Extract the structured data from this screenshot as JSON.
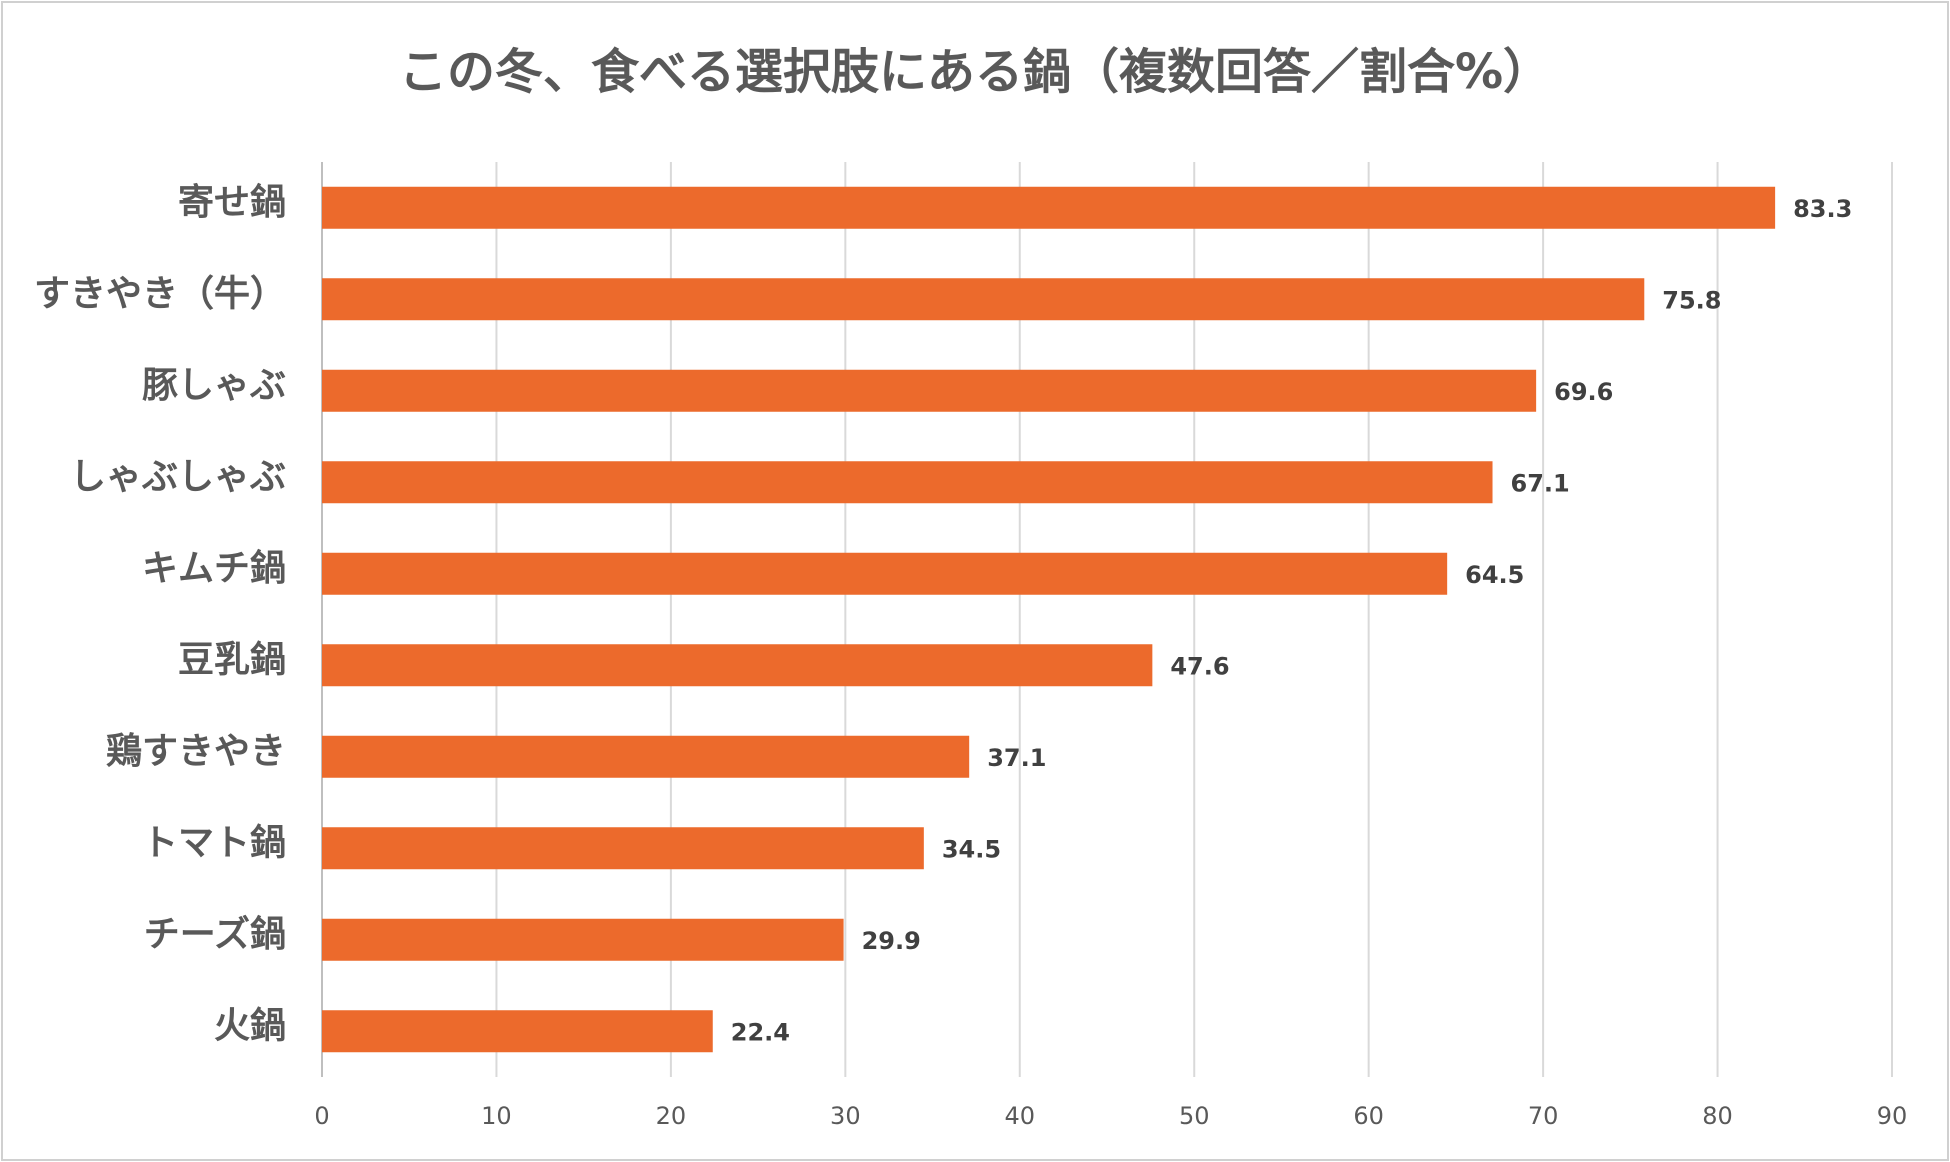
{
  "chart_data": {
    "type": "barh",
    "title": "この冬、食べる選択肢にある鍋（複数回答／割合%）",
    "categories": [
      "寄せ鍋",
      "すきやき（牛）",
      "豚しゃぶ",
      "しゃぶしゃぶ",
      "キムチ鍋",
      "豆乳鍋",
      "鶏すきやき",
      "トマト鍋",
      "チーズ鍋",
      "火鍋"
    ],
    "values": [
      83.3,
      75.8,
      69.6,
      67.1,
      64.5,
      47.6,
      37.1,
      34.5,
      29.9,
      22.4
    ],
    "color": "#ec6a2c",
    "xlim": [
      0,
      90
    ],
    "xticks": [
      0,
      10,
      20,
      30,
      40,
      50,
      60,
      70,
      80,
      90
    ],
    "grid": true
  }
}
